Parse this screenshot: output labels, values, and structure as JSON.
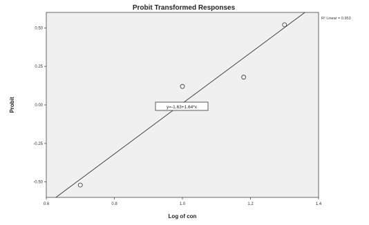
{
  "chart_data": {
    "type": "scatter",
    "title": "Probit Transformed Responses",
    "xlabel": "Log of con",
    "ylabel": "Probit",
    "xlim": [
      0.6,
      1.4
    ],
    "ylim": [
      -0.6,
      0.6
    ],
    "x_ticks": [
      "0.6",
      "0.8",
      "1.0",
      "1.2",
      "1.4"
    ],
    "y_ticks": [
      "0.50",
      "0.25",
      "0.00",
      "-0.25",
      "-0.50"
    ],
    "points": [
      {
        "x": 0.7,
        "y": -0.52
      },
      {
        "x": 1.0,
        "y": 0.12
      },
      {
        "x": 1.18,
        "y": 0.18
      },
      {
        "x": 1.3,
        "y": 0.52
      }
    ],
    "fit_line": {
      "intercept": -1.63,
      "slope": 1.64
    },
    "equation_label": "y=-1.63+1.64*x",
    "r_squared_label": "R² Linear = 0.953",
    "colors": {
      "plot_background": "#f0f0f0",
      "line": "#333333",
      "marker": "#333333"
    }
  }
}
